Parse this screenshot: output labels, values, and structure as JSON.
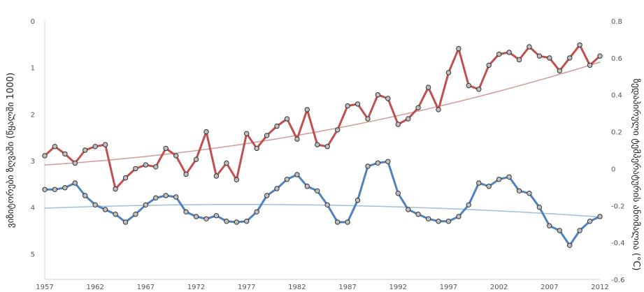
{
  "chart_data": {
    "type": "line",
    "x": [
      1957,
      1958,
      1959,
      1960,
      1961,
      1962,
      1963,
      1964,
      1965,
      1966,
      1967,
      1968,
      1969,
      1970,
      1971,
      1972,
      1973,
      1974,
      1975,
      1976,
      1977,
      1978,
      1979,
      1980,
      1981,
      1982,
      1983,
      1984,
      1985,
      1986,
      1987,
      1988,
      1989,
      1990,
      1991,
      1992,
      1993,
      1994,
      1995,
      1996,
      1997,
      1998,
      1999,
      2000,
      2001,
      2002,
      2003,
      2004,
      2005,
      2006,
      2007,
      2008,
      2009,
      2010,
      2011,
      2012
    ],
    "x_ticks": [
      "1957",
      "1962",
      "1967",
      "1972",
      "1977",
      "1982",
      "1987",
      "1992",
      "1997",
      "2002",
      "2007",
      "2012"
    ],
    "xlim": [
      1957,
      2012
    ],
    "y_left": {
      "label": "ვიზიტორები ზღვაში (წყალში 1000)",
      "ticks": [
        "0",
        "1",
        "2",
        "3",
        "4",
        "5"
      ],
      "lim": [
        5.55,
        0
      ],
      "inverted": true
    },
    "y_right": {
      "label": "ზედაპირული ტემპერატურის ანომალია (°C)",
      "ticks": [
        "0.8",
        "0.6",
        "0.4",
        "0.2",
        "0",
        "-0.2",
        "-0.4",
        "-0.6"
      ],
      "lim": [
        -0.6,
        0.8
      ]
    },
    "series": [
      {
        "color": "#c0504d",
        "axis": "right",
        "values": [
          0.07,
          0.12,
          0.08,
          0.03,
          0.1,
          0.12,
          0.13,
          -0.11,
          -0.05,
          0.0,
          0.02,
          0.01,
          0.11,
          0.07,
          -0.03,
          0.05,
          0.2,
          -0.04,
          0.03,
          -0.06,
          0.19,
          0.11,
          0.18,
          0.23,
          0.27,
          0.16,
          0.32,
          0.13,
          0.12,
          0.21,
          0.34,
          0.35,
          0.27,
          0.4,
          0.38,
          0.24,
          0.27,
          0.33,
          0.44,
          0.32,
          0.52,
          0.65,
          0.45,
          0.43,
          0.56,
          0.62,
          0.63,
          0.59,
          0.66,
          0.61,
          0.6,
          0.53,
          0.6,
          0.67,
          0.56,
          0.61
        ]
      },
      {
        "color": "#4f81bd",
        "axis": "left",
        "values": [
          3.62,
          3.62,
          3.58,
          3.48,
          3.75,
          3.95,
          4.05,
          4.15,
          4.32,
          4.15,
          3.95,
          3.8,
          3.75,
          3.78,
          4.1,
          4.2,
          4.25,
          4.18,
          4.3,
          4.32,
          4.3,
          4.1,
          3.75,
          3.6,
          3.4,
          3.3,
          3.55,
          3.65,
          3.95,
          4.32,
          4.32,
          3.85,
          3.12,
          3.05,
          3.02,
          3.7,
          4.05,
          4.15,
          4.25,
          4.3,
          4.3,
          4.2,
          3.95,
          3.48,
          3.55,
          3.4,
          3.35,
          3.65,
          3.7,
          4.0,
          4.4,
          4.5,
          4.82,
          4.5,
          4.3,
          4.2
        ]
      },
      {
        "color": "#d49a96",
        "axis": "right",
        "style": "trendline",
        "values": [
          0.02,
          0.0236,
          0.0274,
          0.0314,
          0.0356,
          0.0401,
          0.0448,
          0.0497,
          0.0549,
          0.0603,
          0.066,
          0.0719,
          0.078,
          0.0844,
          0.091,
          0.0979,
          0.105,
          0.1123,
          0.1199,
          0.1278,
          0.1359,
          0.1443,
          0.1528,
          0.1617,
          0.1708,
          0.1801,
          0.1897,
          0.1995,
          0.2096,
          0.22,
          0.2305,
          0.2414,
          0.2524,
          0.2638,
          0.2754,
          0.2872,
          0.2993,
          0.3116,
          0.3242,
          0.3371,
          0.3502,
          0.3635,
          0.3771,
          0.391,
          0.4051,
          0.4194,
          0.434,
          0.4489,
          0.464,
          0.4794,
          0.495,
          0.5109,
          0.527,
          0.5434,
          0.56,
          0.5769
        ]
      },
      {
        "color": "#9cc0dd",
        "axis": "left",
        "style": "trendline",
        "values": [
          4.02,
          4.0121,
          4.0046,
          3.9975,
          3.9908,
          3.9846,
          3.9787,
          3.9733,
          3.9683,
          3.9637,
          3.9596,
          3.9558,
          3.9525,
          3.9496,
          3.9471,
          3.945,
          3.9434,
          3.9421,
          3.9413,
          3.9409,
          3.941,
          3.9414,
          3.9423,
          3.9436,
          3.9453,
          3.9474,
          3.95,
          3.953,
          3.9564,
          3.9602,
          3.9645,
          3.9692,
          3.9743,
          3.9798,
          3.9858,
          3.9922,
          3.999,
          4.0062,
          4.0138,
          4.0219,
          4.0304,
          4.0393,
          4.0486,
          4.0584,
          4.0686,
          4.0792,
          4.0902,
          4.1017,
          4.1136,
          4.1258,
          4.1385,
          4.1517,
          4.1652,
          4.1792,
          4.1936,
          4.2084
        ]
      }
    ],
    "grid": false
  }
}
